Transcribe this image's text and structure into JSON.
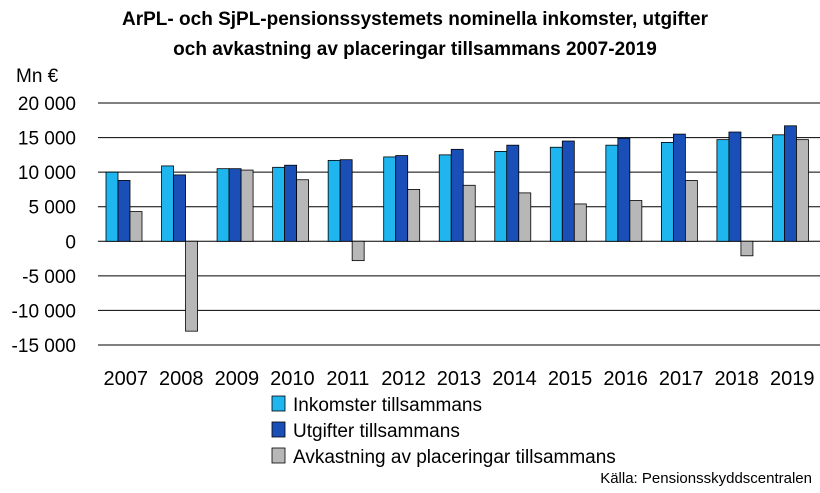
{
  "chart_data": {
    "type": "bar",
    "title_lines": [
      "ArPL- och SjPL-pensionssystemets nominella inkomster,  utgifter",
      "och avkastning av placeringar tillsammans 2007-2019"
    ],
    "ylabel": "Mn €",
    "source": "Källa: Pensionsskyddscentralen",
    "ylim": [
      -15000,
      20000
    ],
    "y_ticks": [
      20000,
      15000,
      10000,
      5000,
      0,
      -5000,
      -10000,
      -15000
    ],
    "y_tick_labels": [
      "20 000",
      "15 000",
      "10 000",
      "5 000",
      "0",
      "-5 000",
      "-10 000",
      "-15 000"
    ],
    "categories": [
      "2007",
      "2008",
      "2009",
      "2010",
      "2011",
      "2012",
      "2013",
      "2014",
      "2015",
      "2016",
      "2017",
      "2018",
      "2019"
    ],
    "grid": true,
    "legend_position": "bottom",
    "series": [
      {
        "name": "Inkomster tillsammans",
        "color": "#1fb6f0",
        "values": [
          10000,
          10900,
          10500,
          10700,
          11700,
          12200,
          12500,
          13000,
          13600,
          13900,
          14300,
          14700,
          15400
        ]
      },
      {
        "name": "Utgifter tillsammans",
        "color": "#1a4fb8",
        "values": [
          8800,
          9600,
          10500,
          11000,
          11800,
          12400,
          13300,
          13900,
          14500,
          14900,
          15500,
          15800,
          16700
        ]
      },
      {
        "name": "Avkastning av placeringar tillsammans",
        "color": "#b7b7b7",
        "values": [
          4300,
          -13000,
          10300,
          8900,
          -2800,
          7500,
          8100,
          7000,
          5400,
          5900,
          8800,
          -2100,
          14700
        ]
      }
    ]
  }
}
